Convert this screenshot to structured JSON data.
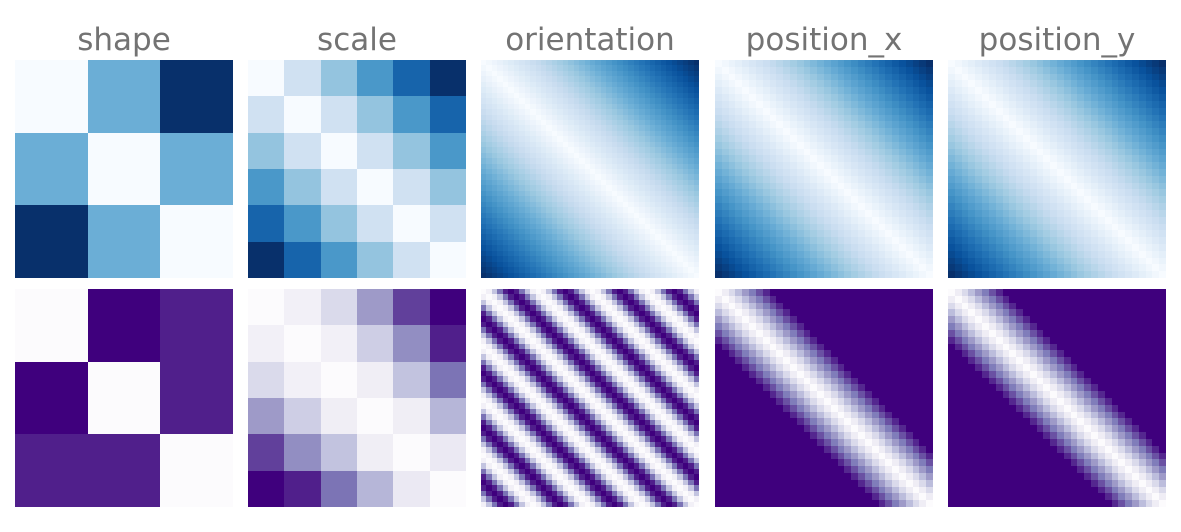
{
  "chart_data": [
    {
      "type": "heatmap",
      "column": "shape",
      "colormap": "Blues",
      "n": 3,
      "values": [
        [
          0,
          0.5,
          1
        ],
        [
          0.5,
          0,
          0.5
        ],
        [
          1,
          0.5,
          0
        ]
      ],
      "title": "shape"
    },
    {
      "type": "heatmap",
      "column": "scale",
      "colormap": "Blues",
      "n": 6,
      "values": [
        [
          0,
          0.2,
          0.4,
          0.6,
          0.8,
          1
        ],
        [
          0.2,
          0,
          0.2,
          0.4,
          0.6,
          0.8
        ],
        [
          0.4,
          0.2,
          0,
          0.2,
          0.4,
          0.6
        ],
        [
          0.6,
          0.4,
          0.2,
          0,
          0.2,
          0.4
        ],
        [
          0.8,
          0.6,
          0.4,
          0.2,
          0,
          0.2
        ],
        [
          1,
          0.8,
          0.6,
          0.4,
          0.2,
          0
        ]
      ],
      "title": "scale"
    },
    {
      "type": "heatmap",
      "column": "orientation",
      "colormap": "Blues",
      "n": 40,
      "pattern": "abs_diff",
      "title": "orientation"
    },
    {
      "type": "heatmap",
      "column": "position_x",
      "colormap": "Blues",
      "n": 32,
      "pattern": "abs_diff",
      "title": "position_x"
    },
    {
      "type": "heatmap",
      "column": "position_y",
      "colormap": "Blues",
      "n": 32,
      "pattern": "abs_diff",
      "title": "position_y"
    },
    {
      "type": "heatmap",
      "column": "shape",
      "colormap": "Purples",
      "n": 3,
      "values": [
        [
          0,
          1,
          0.9
        ],
        [
          1,
          0,
          0.9
        ],
        [
          0.9,
          0.9,
          0
        ]
      ]
    },
    {
      "type": "heatmap",
      "column": "scale",
      "colormap": "Purples",
      "n": 6,
      "values": [
        [
          0,
          0.1,
          0.25,
          0.5,
          0.8,
          1
        ],
        [
          0.1,
          0,
          0.1,
          0.3,
          0.55,
          0.9
        ],
        [
          0.25,
          0.1,
          0,
          0.12,
          0.35,
          0.65
        ],
        [
          0.5,
          0.3,
          0.12,
          0,
          0.12,
          0.4
        ],
        [
          0.8,
          0.55,
          0.35,
          0.12,
          0,
          0.15
        ],
        [
          1,
          0.9,
          0.65,
          0.4,
          0.15,
          0
        ]
      ]
    },
    {
      "type": "heatmap",
      "column": "orientation",
      "colormap": "Purples",
      "n": 40,
      "pattern": "periodic",
      "period": 10
    },
    {
      "type": "heatmap",
      "column": "position_x",
      "colormap": "Purples",
      "n": 32,
      "pattern": "saturating",
      "width": 8
    },
    {
      "type": "heatmap",
      "column": "position_y",
      "colormap": "Purples",
      "n": 32,
      "pattern": "saturating",
      "width": 8
    }
  ],
  "colormaps": {
    "Blues": [
      "#f7fbff",
      "#deebf7",
      "#c6dbef",
      "#9ecae1",
      "#6baed6",
      "#4292c6",
      "#2171b5",
      "#08519c",
      "#08306b"
    ],
    "Purples": [
      "#fcfbfd",
      "#efedf5",
      "#dadaeb",
      "#bcbddc",
      "#9e9ac8",
      "#807dba",
      "#6a51a3",
      "#54278f",
      "#3f007d"
    ]
  }
}
